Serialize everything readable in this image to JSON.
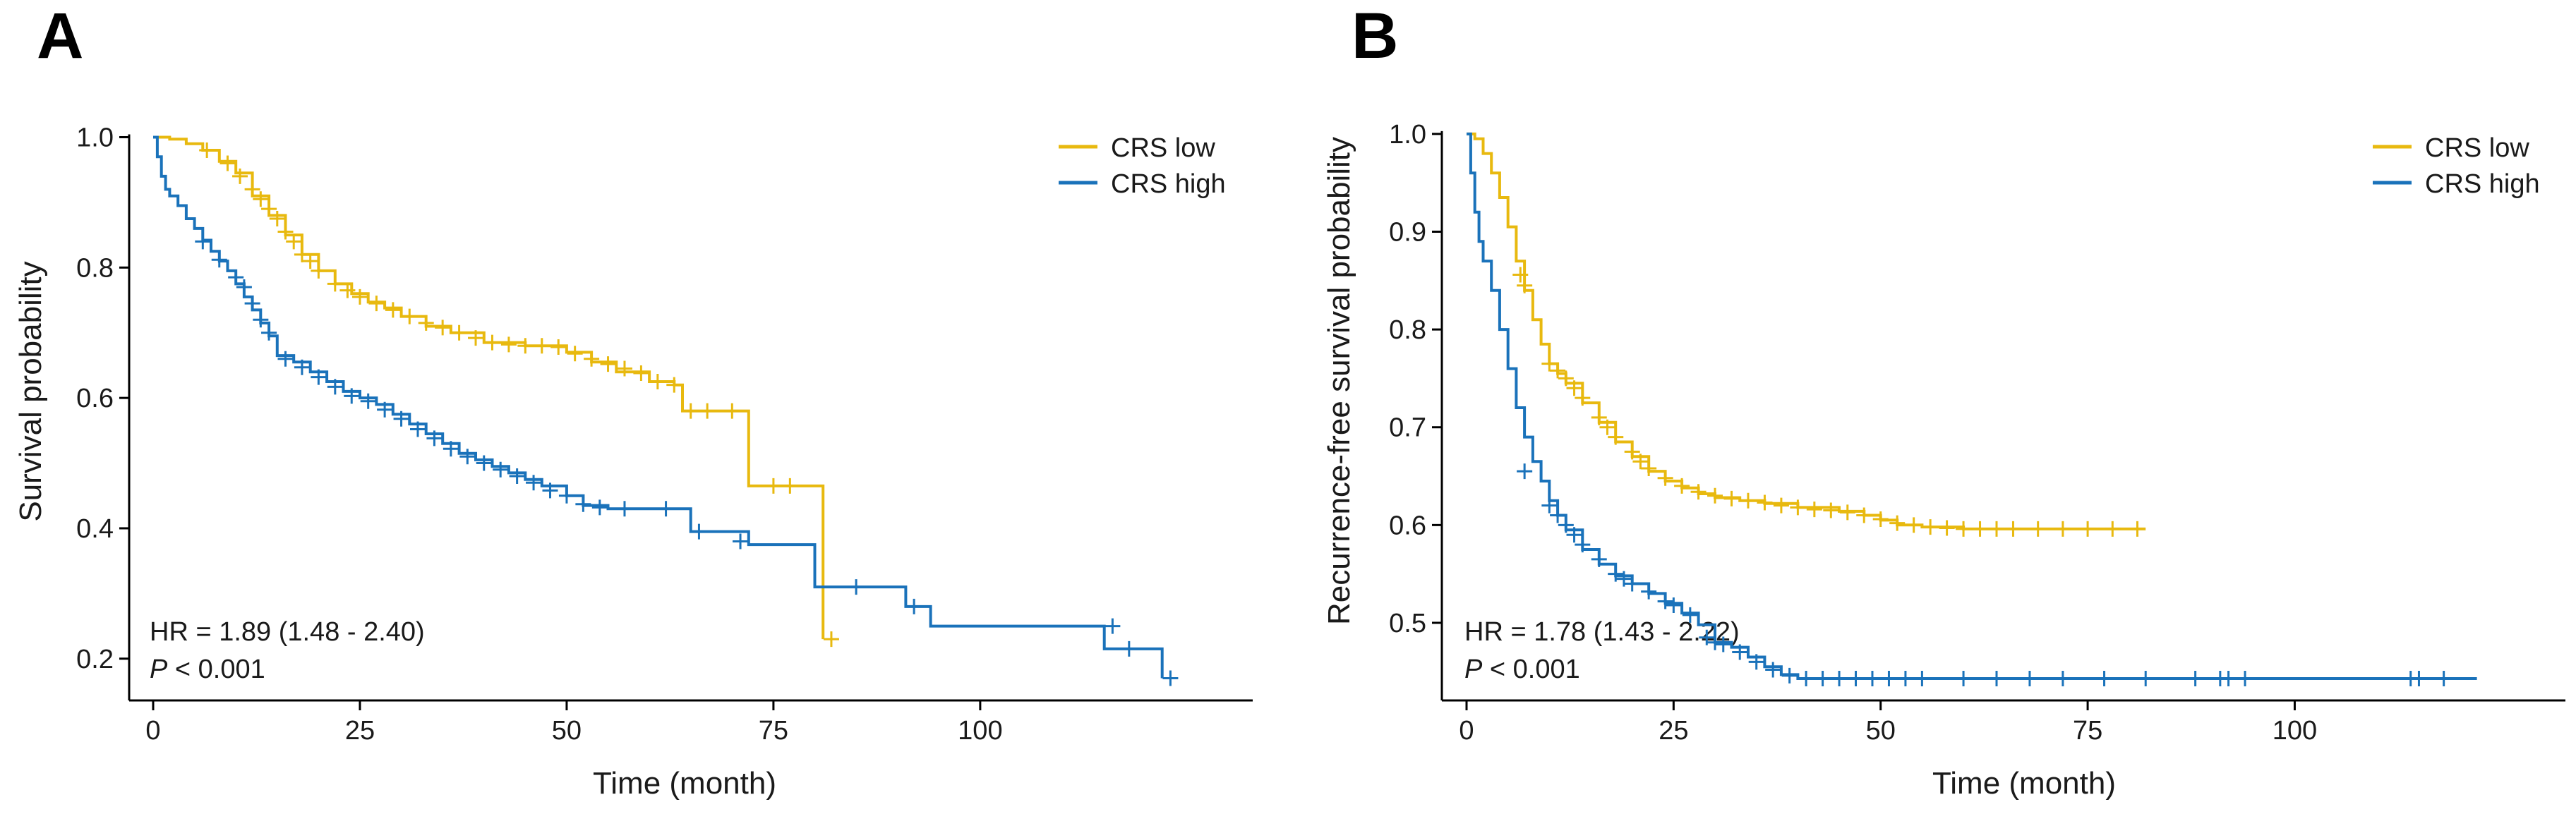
{
  "colors": {
    "low": "#E8B90F",
    "high": "#1A72BA"
  },
  "chart_data": [
    {
      "panel": "A",
      "type": "line",
      "step": true,
      "title": "",
      "xlabel": "Time (month)",
      "ylabel": "Survival probability",
      "xlim": [
        0,
        128
      ],
      "ylim": [
        0.15,
        1.02
      ],
      "xticks": [
        0,
        25,
        50,
        75,
        100
      ],
      "yticks": [
        0.2,
        0.4,
        0.6,
        0.8,
        1.0
      ],
      "ytick_labels": [
        "0.2",
        "0.4",
        "0.6",
        "0.8",
        "1.0"
      ],
      "legend": {
        "position": "top-right",
        "entries": [
          "CRS low",
          "CRS high"
        ]
      },
      "annotation": {
        "hr": "HR = 1.89 (1.48 -  2.40)",
        "p_symbol": "P",
        "p_rest": " < 0.001"
      },
      "series": [
        {
          "name": "CRS low",
          "color_key": "low",
          "x": [
            0,
            2,
            4,
            6,
            8,
            10,
            12,
            14,
            16,
            18,
            20,
            22,
            24,
            26,
            28,
            30,
            33,
            36,
            40,
            45,
            50,
            53,
            56,
            60,
            63,
            64,
            72,
            81
          ],
          "y": [
            1.0,
            0.997,
            0.99,
            0.98,
            0.963,
            0.945,
            0.91,
            0.88,
            0.85,
            0.82,
            0.795,
            0.775,
            0.76,
            0.747,
            0.738,
            0.725,
            0.71,
            0.7,
            0.685,
            0.68,
            0.67,
            0.655,
            0.64,
            0.625,
            0.62,
            0.58,
            0.465,
            0.23
          ],
          "censored": [
            [
              6.5,
              0.98
            ],
            [
              9,
              0.96
            ],
            [
              10.5,
              0.94
            ],
            [
              12,
              0.92
            ],
            [
              13,
              0.905
            ],
            [
              14,
              0.89
            ],
            [
              15,
              0.875
            ],
            [
              16,
              0.855
            ],
            [
              17,
              0.84
            ],
            [
              18,
              0.82
            ],
            [
              19,
              0.81
            ],
            [
              20,
              0.795
            ],
            [
              22,
              0.775
            ],
            [
              23.5,
              0.765
            ],
            [
              25,
              0.755
            ],
            [
              27,
              0.745
            ],
            [
              29,
              0.735
            ],
            [
              31,
              0.725
            ],
            [
              33,
              0.715
            ],
            [
              35,
              0.708
            ],
            [
              37,
              0.7
            ],
            [
              39,
              0.692
            ],
            [
              41,
              0.685
            ],
            [
              43,
              0.682
            ],
            [
              45,
              0.68
            ],
            [
              47,
              0.68
            ],
            [
              49,
              0.678
            ],
            [
              51,
              0.668
            ],
            [
              53,
              0.66
            ],
            [
              55,
              0.652
            ],
            [
              57,
              0.645
            ],
            [
              59,
              0.638
            ],
            [
              61,
              0.625
            ],
            [
              63,
              0.62
            ],
            [
              65,
              0.58
            ],
            [
              67,
              0.58
            ],
            [
              70,
              0.58
            ],
            [
              75,
              0.465
            ],
            [
              77,
              0.465
            ],
            [
              82,
              0.23
            ]
          ]
        },
        {
          "name": "CRS high",
          "color_key": "high",
          "x": [
            0,
            0.5,
            1,
            1.5,
            2,
            3,
            4,
            5,
            6,
            7,
            8,
            9,
            10,
            11,
            12,
            13,
            14,
            15,
            17,
            19,
            21,
            23,
            25,
            27,
            29,
            31,
            33,
            35,
            37,
            39,
            41,
            43,
            45,
            47,
            50,
            52,
            55,
            60,
            63,
            65,
            72,
            80,
            91,
            94,
            115,
            122
          ],
          "y": [
            1.0,
            0.97,
            0.94,
            0.92,
            0.91,
            0.895,
            0.875,
            0.86,
            0.842,
            0.825,
            0.81,
            0.795,
            0.775,
            0.755,
            0.735,
            0.715,
            0.695,
            0.665,
            0.655,
            0.64,
            0.625,
            0.61,
            0.6,
            0.59,
            0.575,
            0.56,
            0.545,
            0.53,
            0.515,
            0.505,
            0.495,
            0.485,
            0.475,
            0.465,
            0.45,
            0.435,
            0.43,
            0.43,
            0.43,
            0.395,
            0.375,
            0.31,
            0.28,
            0.25,
            0.215,
            0.17
          ],
          "censored": [
            [
              6,
              0.84
            ],
            [
              8,
              0.812
            ],
            [
              10,
              0.785
            ],
            [
              11,
              0.77
            ],
            [
              12,
              0.745
            ],
            [
              13,
              0.72
            ],
            [
              14,
              0.7
            ],
            [
              16,
              0.66
            ],
            [
              18,
              0.647
            ],
            [
              20,
              0.632
            ],
            [
              22,
              0.617
            ],
            [
              24,
              0.603
            ],
            [
              26,
              0.595
            ],
            [
              28,
              0.582
            ],
            [
              30,
              0.568
            ],
            [
              32,
              0.552
            ],
            [
              34,
              0.538
            ],
            [
              36,
              0.522
            ],
            [
              38,
              0.51
            ],
            [
              40,
              0.5
            ],
            [
              42,
              0.49
            ],
            [
              44,
              0.48
            ],
            [
              46,
              0.47
            ],
            [
              48,
              0.458
            ],
            [
              50,
              0.45
            ],
            [
              52,
              0.437
            ],
            [
              54,
              0.432
            ],
            [
              57,
              0.43
            ],
            [
              62,
              0.43
            ],
            [
              66,
              0.395
            ],
            [
              71,
              0.38
            ],
            [
              85,
              0.31
            ],
            [
              92,
              0.28
            ],
            [
              116,
              0.25
            ],
            [
              118,
              0.215
            ],
            [
              123,
              0.17
            ]
          ]
        }
      ]
    },
    {
      "panel": "B",
      "type": "line",
      "step": true,
      "title": "",
      "xlabel": "Time (month)",
      "ylabel": "Recurrence-free survival probability",
      "xlim": [
        0,
        128
      ],
      "ylim": [
        0.43,
        1.01
      ],
      "xticks": [
        0,
        25,
        50,
        75,
        100
      ],
      "yticks": [
        0.5,
        0.6,
        0.7,
        0.8,
        0.9,
        1.0
      ],
      "ytick_labels": [
        "0.5",
        "0.6",
        "0.7",
        "0.8",
        "0.9",
        "1.0"
      ],
      "legend": {
        "position": "top-right",
        "entries": [
          "CRS low",
          "CRS high"
        ]
      },
      "annotation": {
        "hr": "HR = 1.78 (1.43 -  2.22)",
        "p_symbol": "P",
        "p_rest": " < 0.001"
      },
      "series": [
        {
          "name": "CRS low",
          "color_key": "low",
          "x": [
            0,
            1,
            2,
            3,
            4,
            5,
            6,
            7,
            8,
            9,
            10,
            11,
            12,
            14,
            16,
            18,
            20,
            22,
            24,
            26,
            28,
            30,
            33,
            36,
            40,
            45,
            48,
            50,
            52,
            55,
            60,
            82
          ],
          "y": [
            1.0,
            0.995,
            0.98,
            0.96,
            0.935,
            0.905,
            0.87,
            0.84,
            0.81,
            0.785,
            0.765,
            0.755,
            0.745,
            0.725,
            0.705,
            0.685,
            0.67,
            0.655,
            0.645,
            0.638,
            0.632,
            0.628,
            0.625,
            0.622,
            0.618,
            0.614,
            0.61,
            0.605,
            0.6,
            0.598,
            0.596,
            0.596
          ],
          "censored": [
            [
              6.5,
              0.856
            ],
            [
              7,
              0.845
            ],
            [
              10,
              0.765
            ],
            [
              11,
              0.758
            ],
            [
              12,
              0.75
            ],
            [
              13,
              0.74
            ],
            [
              14,
              0.73
            ],
            [
              16,
              0.71
            ],
            [
              17,
              0.7
            ],
            [
              18,
              0.69
            ],
            [
              20,
              0.675
            ],
            [
              21,
              0.665
            ],
            [
              22,
              0.658
            ],
            [
              24,
              0.648
            ],
            [
              26,
              0.64
            ],
            [
              28,
              0.634
            ],
            [
              30,
              0.63
            ],
            [
              32,
              0.627
            ],
            [
              34,
              0.625
            ],
            [
              36,
              0.623
            ],
            [
              38,
              0.62
            ],
            [
              40,
              0.618
            ],
            [
              42,
              0.616
            ],
            [
              44,
              0.615
            ],
            [
              46,
              0.613
            ],
            [
              48,
              0.61
            ],
            [
              50,
              0.606
            ],
            [
              52,
              0.602
            ],
            [
              54,
              0.6
            ],
            [
              56,
              0.598
            ],
            [
              58,
              0.597
            ],
            [
              60,
              0.596
            ],
            [
              62,
              0.596
            ],
            [
              64,
              0.596
            ],
            [
              66,
              0.596
            ],
            [
              69,
              0.596
            ],
            [
              72,
              0.596
            ],
            [
              75,
              0.596
            ],
            [
              78,
              0.596
            ],
            [
              81,
              0.596
            ]
          ]
        },
        {
          "name": "CRS high",
          "color_key": "high",
          "x": [
            0,
            0.5,
            1,
            1.5,
            2,
            3,
            4,
            5,
            6,
            7,
            8,
            9,
            10,
            11,
            12,
            14,
            16,
            18,
            20,
            22,
            24,
            26,
            28,
            30,
            32,
            34,
            36,
            38,
            40,
            122
          ],
          "y": [
            1.0,
            0.96,
            0.92,
            0.89,
            0.87,
            0.84,
            0.8,
            0.76,
            0.72,
            0.69,
            0.665,
            0.645,
            0.625,
            0.61,
            0.595,
            0.575,
            0.56,
            0.548,
            0.54,
            0.53,
            0.52,
            0.51,
            0.498,
            0.48,
            0.475,
            0.465,
            0.455,
            0.447,
            0.443,
            0.443
          ],
          "censored": [
            [
              7,
              0.655
            ],
            [
              10,
              0.62
            ],
            [
              11,
              0.61
            ],
            [
              12,
              0.6
            ],
            [
              13,
              0.59
            ],
            [
              14,
              0.58
            ],
            [
              16,
              0.565
            ],
            [
              18,
              0.55
            ],
            [
              19,
              0.545
            ],
            [
              20,
              0.54
            ],
            [
              22,
              0.532
            ],
            [
              24,
              0.522
            ],
            [
              25,
              0.518
            ],
            [
              27,
              0.508
            ],
            [
              29,
              0.485
            ],
            [
              30,
              0.48
            ],
            [
              31,
              0.478
            ],
            [
              33,
              0.47
            ],
            [
              35,
              0.46
            ],
            [
              37,
              0.452
            ],
            [
              39,
              0.446
            ],
            [
              41,
              0.443
            ],
            [
              43,
              0.443
            ],
            [
              45,
              0.443
            ],
            [
              47,
              0.443
            ],
            [
              49,
              0.443
            ],
            [
              51,
              0.443
            ],
            [
              53,
              0.443
            ],
            [
              55,
              0.443
            ],
            [
              60,
              0.443
            ],
            [
              64,
              0.443
            ],
            [
              68,
              0.443
            ],
            [
              72,
              0.443
            ],
            [
              77,
              0.443
            ],
            [
              82,
              0.443
            ],
            [
              88,
              0.443
            ],
            [
              91,
              0.443
            ],
            [
              92,
              0.443
            ],
            [
              94,
              0.443
            ],
            [
              114,
              0.443
            ],
            [
              115,
              0.443
            ],
            [
              118,
              0.443
            ]
          ]
        }
      ]
    }
  ]
}
